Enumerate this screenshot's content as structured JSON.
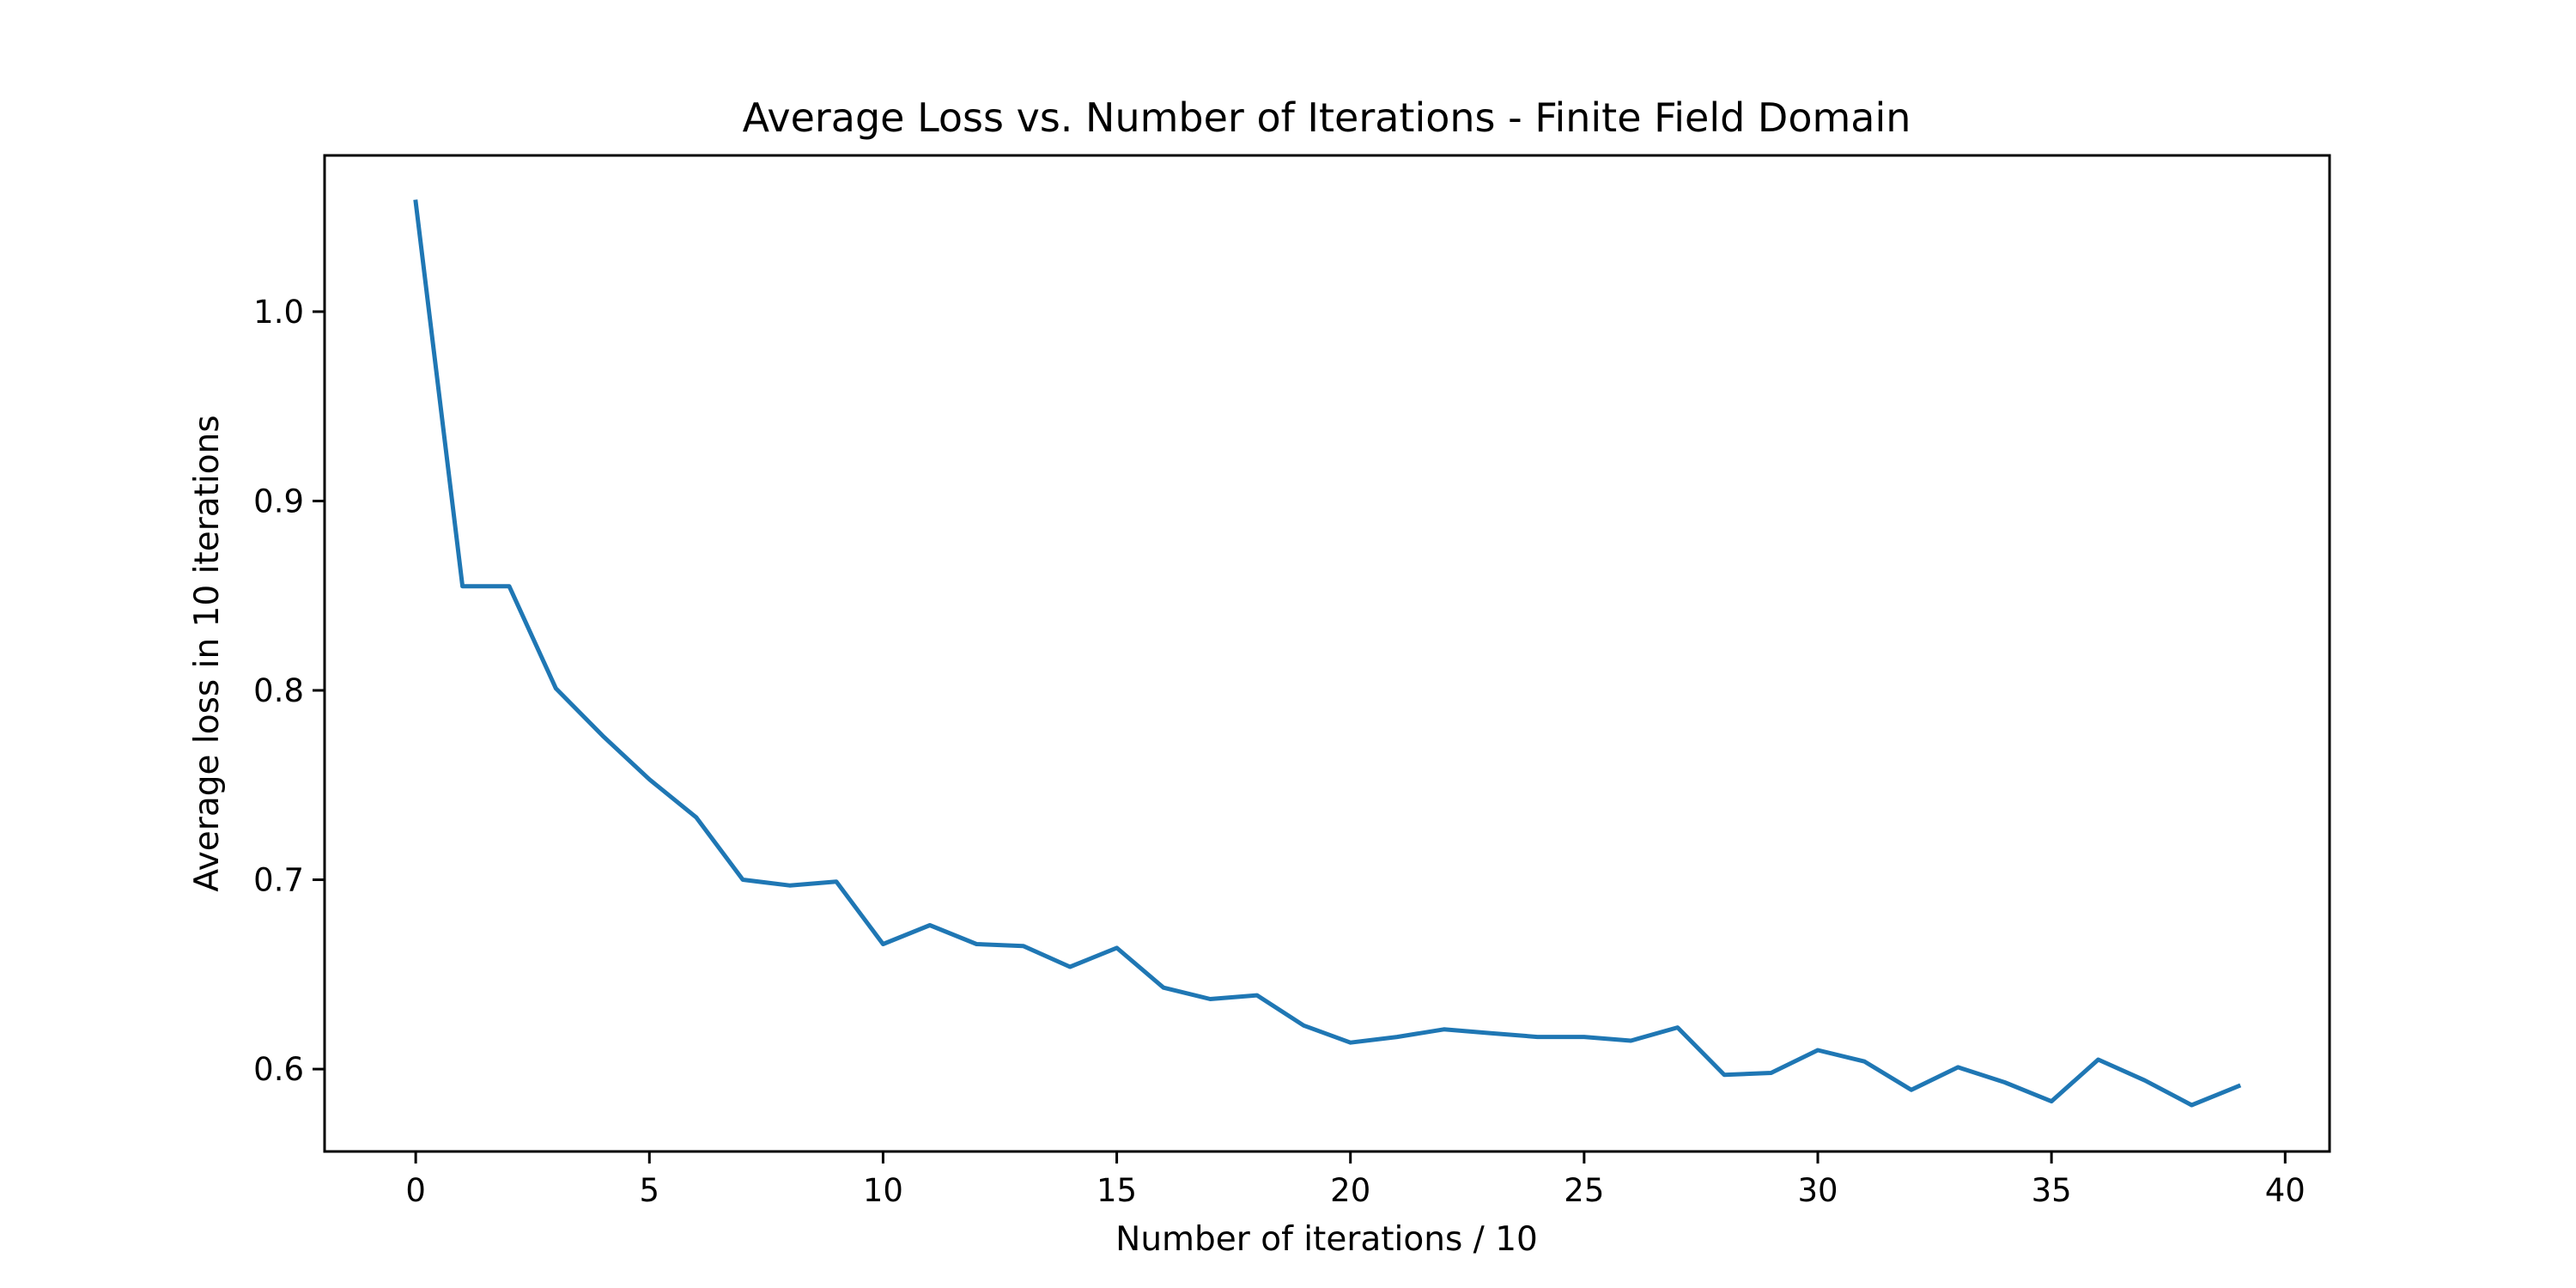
{
  "chart_data": {
    "type": "line",
    "title": "Average Loss vs. Number of Iterations - Finite Field Domain",
    "xlabel": "Number of iterations / 10",
    "ylabel": "Average loss in 10 iterations",
    "xlim": [
      -1.95,
      40.95
    ],
    "ylim": [
      0.5565,
      1.0825
    ],
    "xticks": [
      0,
      5,
      10,
      15,
      20,
      25,
      30,
      35,
      40
    ],
    "xtick_labels": [
      "0",
      "5",
      "10",
      "15",
      "20",
      "25",
      "30",
      "35",
      "40"
    ],
    "yticks": [
      0.6,
      0.7,
      0.8,
      0.9,
      1.0
    ],
    "ytick_labels": [
      "0.6",
      "0.7",
      "0.8",
      "0.9",
      "1.0"
    ],
    "grid": false,
    "legend": "none",
    "color": "#1f77b4",
    "x": [
      0,
      1,
      2,
      3,
      4,
      5,
      6,
      7,
      8,
      9,
      10,
      11,
      12,
      13,
      14,
      15,
      16,
      17,
      18,
      19,
      20,
      21,
      22,
      23,
      24,
      25,
      26,
      27,
      28,
      29,
      30,
      31,
      32,
      33,
      34,
      35,
      36,
      37,
      38,
      39
    ],
    "y": [
      1.058,
      0.855,
      0.855,
      0.801,
      0.776,
      0.753,
      0.733,
      0.7,
      0.697,
      0.699,
      0.666,
      0.676,
      0.666,
      0.665,
      0.654,
      0.664,
      0.643,
      0.637,
      0.639,
      0.623,
      0.614,
      0.617,
      0.621,
      0.619,
      0.617,
      0.617,
      0.615,
      0.622,
      0.597,
      0.598,
      0.61,
      0.604,
      0.589,
      0.601,
      0.593,
      0.583,
      0.605,
      0.594,
      0.581,
      0.591
    ]
  }
}
